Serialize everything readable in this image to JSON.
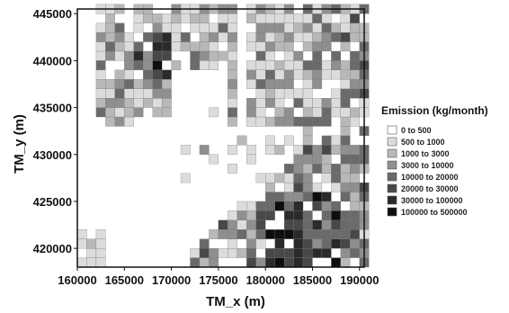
{
  "map": {
    "x_axis_title": "TM_x (m)",
    "y_axis_title": "TM_y (m)",
    "x_ticks": [
      "160000",
      "165000",
      "170000",
      "175000",
      "180000",
      "185000",
      "190000"
    ],
    "x_tick_values": [
      160000,
      165000,
      170000,
      175000,
      180000,
      185000,
      190000
    ],
    "y_ticks": [
      "445000",
      "440000",
      "435000",
      "430000",
      "425000",
      "420000"
    ],
    "y_tick_values": [
      445000,
      440000,
      435000,
      430000,
      425000,
      420000
    ],
    "x_range": [
      160000,
      190500
    ],
    "y_range": [
      418000,
      445500
    ],
    "cell_size_m": 1000
  },
  "legend": {
    "title": "Emission (kg/month)",
    "classes": [
      {
        "label": "0 to 500",
        "color": "#ffffff"
      },
      {
        "label": "500 to 1000",
        "color": "#dcdcdc"
      },
      {
        "label": "1000 to 3000",
        "color": "#b8b8b8"
      },
      {
        "label": "3000 to 10000",
        "color": "#8f8f8f"
      },
      {
        "label": "10000 to 20000",
        "color": "#6a6a6a"
      },
      {
        "label": "20000 to 30000",
        "color": "#484848"
      },
      {
        "label": "30000 to 100000",
        "color": "#2a2a2a"
      },
      {
        "label": "100000 to 500000",
        "color": "#0e0e0e"
      }
    ]
  }
}
